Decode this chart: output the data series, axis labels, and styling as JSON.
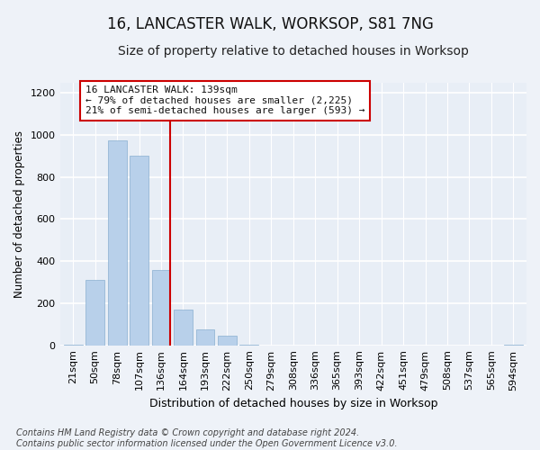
{
  "title": "16, LANCASTER WALK, WORKSOP, S81 7NG",
  "subtitle": "Size of property relative to detached houses in Worksop",
  "xlabel": "Distribution of detached houses by size in Worksop",
  "ylabel": "Number of detached properties",
  "categories": [
    "21sqm",
    "50sqm",
    "78sqm",
    "107sqm",
    "136sqm",
    "164sqm",
    "193sqm",
    "222sqm",
    "250sqm",
    "279sqm",
    "308sqm",
    "336sqm",
    "365sqm",
    "393sqm",
    "422sqm",
    "451sqm",
    "479sqm",
    "508sqm",
    "537sqm",
    "565sqm",
    "594sqm"
  ],
  "values": [
    5,
    310,
    975,
    900,
    360,
    170,
    75,
    45,
    5,
    0,
    0,
    0,
    0,
    0,
    0,
    0,
    0,
    0,
    0,
    0,
    5
  ],
  "bar_color": "#b8d0ea",
  "bar_edge_color": "#8ab0d0",
  "vline_x_bar": 4,
  "vline_color": "#cc0000",
  "annotation_text": "16 LANCASTER WALK: 139sqm\n← 79% of detached houses are smaller (2,225)\n21% of semi-detached houses are larger (593) →",
  "annotation_box_facecolor": "#ffffff",
  "annotation_box_edgecolor": "#cc0000",
  "ylim": [
    0,
    1250
  ],
  "yticks": [
    0,
    200,
    400,
    600,
    800,
    1000,
    1200
  ],
  "footer": "Contains HM Land Registry data © Crown copyright and database right 2024.\nContains public sector information licensed under the Open Government Licence v3.0.",
  "bg_color": "#eef2f8",
  "plot_bg_color": "#e8eef6",
  "grid_color": "#ffffff",
  "title_fontsize": 12,
  "subtitle_fontsize": 10,
  "ylabel_fontsize": 8.5,
  "xlabel_fontsize": 9,
  "tick_fontsize": 8,
  "annotation_fontsize": 8,
  "footer_fontsize": 7
}
